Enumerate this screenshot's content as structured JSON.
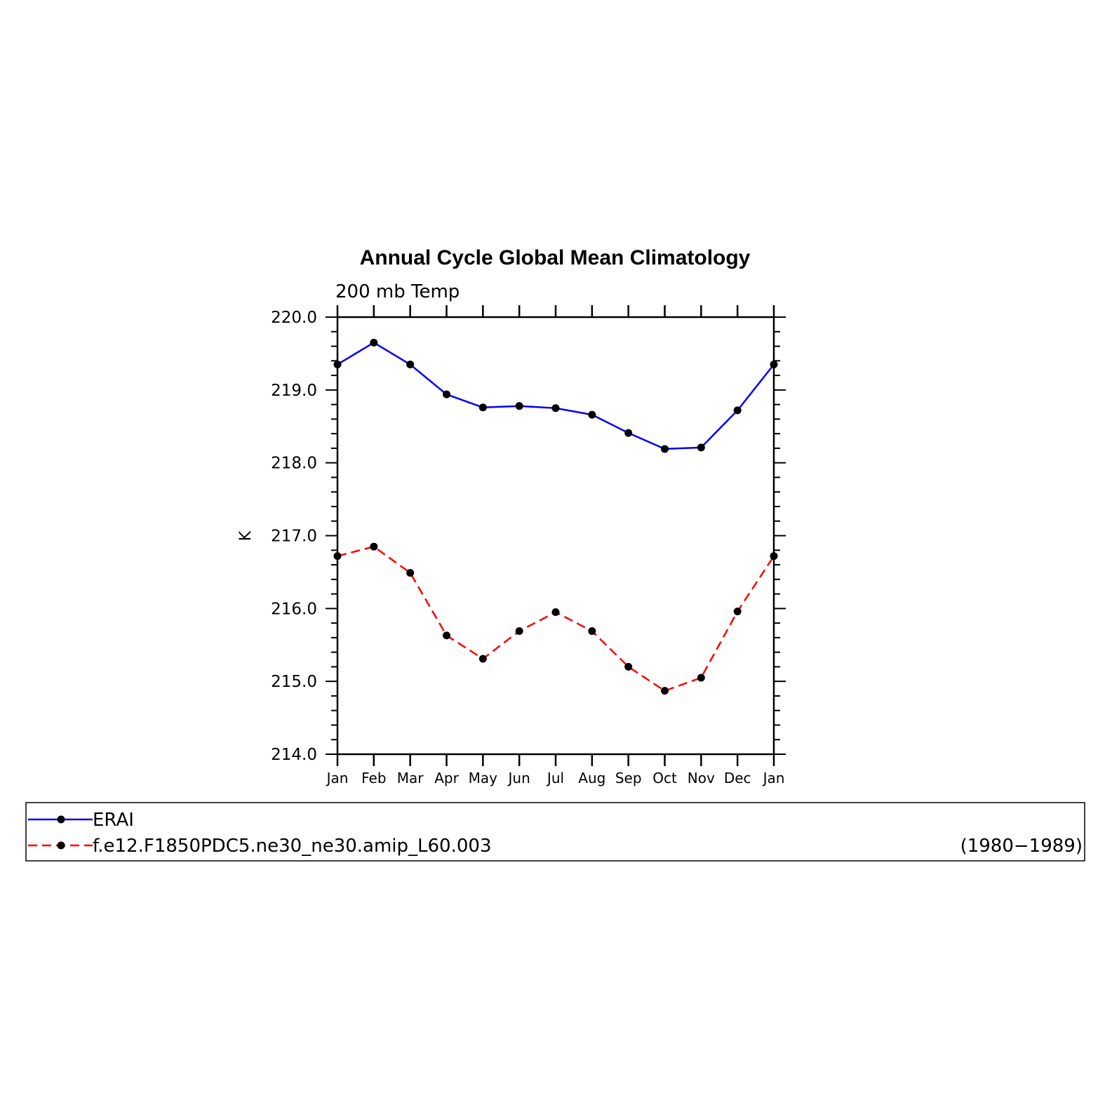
{
  "chart_data": {
    "type": "line",
    "title": "Annual Cycle Global Mean Climatology",
    "subtitle": "200 mb Temp",
    "xlabel": "",
    "ylabel": "K",
    "categories": [
      "Jan",
      "Feb",
      "Mar",
      "Apr",
      "May",
      "Jun",
      "Jul",
      "Aug",
      "Sep",
      "Oct",
      "Nov",
      "Dec",
      "Jan"
    ],
    "ylim": [
      214.0,
      220.0
    ],
    "yticks": [
      "214.0",
      "215.0",
      "216.0",
      "217.0",
      "218.0",
      "219.0",
      "220.0"
    ],
    "grid": false,
    "legend_position": "bottom",
    "legend_note": "(1980−1989)",
    "series": [
      {
        "name": "ERAI",
        "color": "#0000ff",
        "dash": "solid",
        "values": [
          219.35,
          219.65,
          219.35,
          218.94,
          218.76,
          218.78,
          218.75,
          218.66,
          218.41,
          218.19,
          218.21,
          218.72,
          219.35
        ]
      },
      {
        "name": "f.e12.F1850PDC5.ne30_ne30.amip_L60.003",
        "color": "#ff0000",
        "dash": "dashed",
        "values": [
          216.72,
          216.85,
          216.49,
          215.63,
          215.31,
          215.69,
          215.95,
          215.69,
          215.2,
          214.87,
          215.05,
          215.96,
          216.72
        ]
      }
    ]
  }
}
